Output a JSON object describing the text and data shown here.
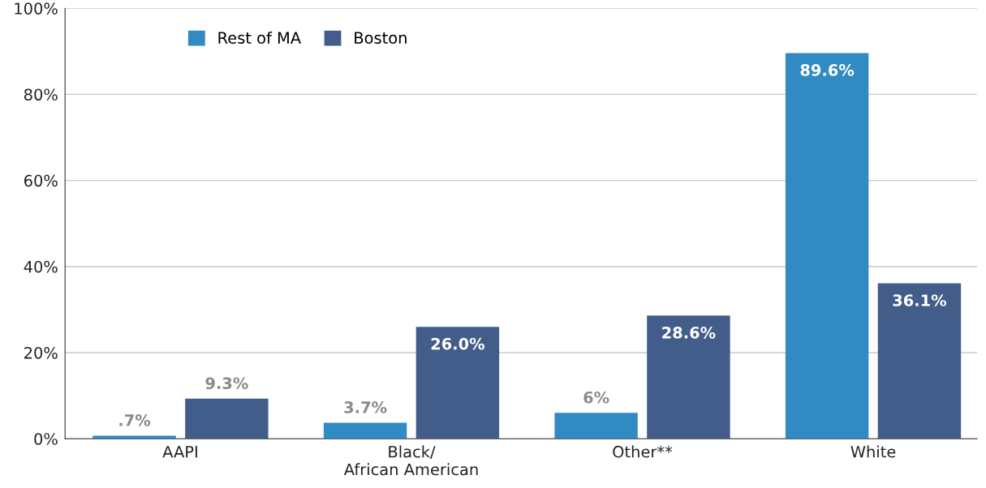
{
  "chart_data": {
    "type": "bar",
    "categories": [
      "AAPI",
      "Black/\nAfrican American",
      "Other**",
      "White"
    ],
    "series": [
      {
        "name": "Rest of MA",
        "color": "#318ac2",
        "values": [
          0.7,
          3.7,
          6,
          89.6
        ],
        "value_labels": [
          ".7%",
          "3.7%",
          "6%",
          "89.6%"
        ]
      },
      {
        "name": "Boston",
        "color": "#435d8a",
        "values": [
          9.3,
          26.0,
          28.6,
          36.1
        ],
        "value_labels": [
          "9.3%",
          "26.0%",
          "28.6%",
          "36.1%"
        ]
      }
    ],
    "ylim": [
      0,
      100
    ],
    "yticks": [
      {
        "value": 0,
        "label": "0%"
      },
      {
        "value": 20,
        "label": "20%"
      },
      {
        "value": 40,
        "label": "40%"
      },
      {
        "value": 60,
        "label": "60%"
      },
      {
        "value": 80,
        "label": "80%"
      },
      {
        "value": 100,
        "label": "100%"
      }
    ],
    "grid": "y",
    "legend": "top left"
  }
}
